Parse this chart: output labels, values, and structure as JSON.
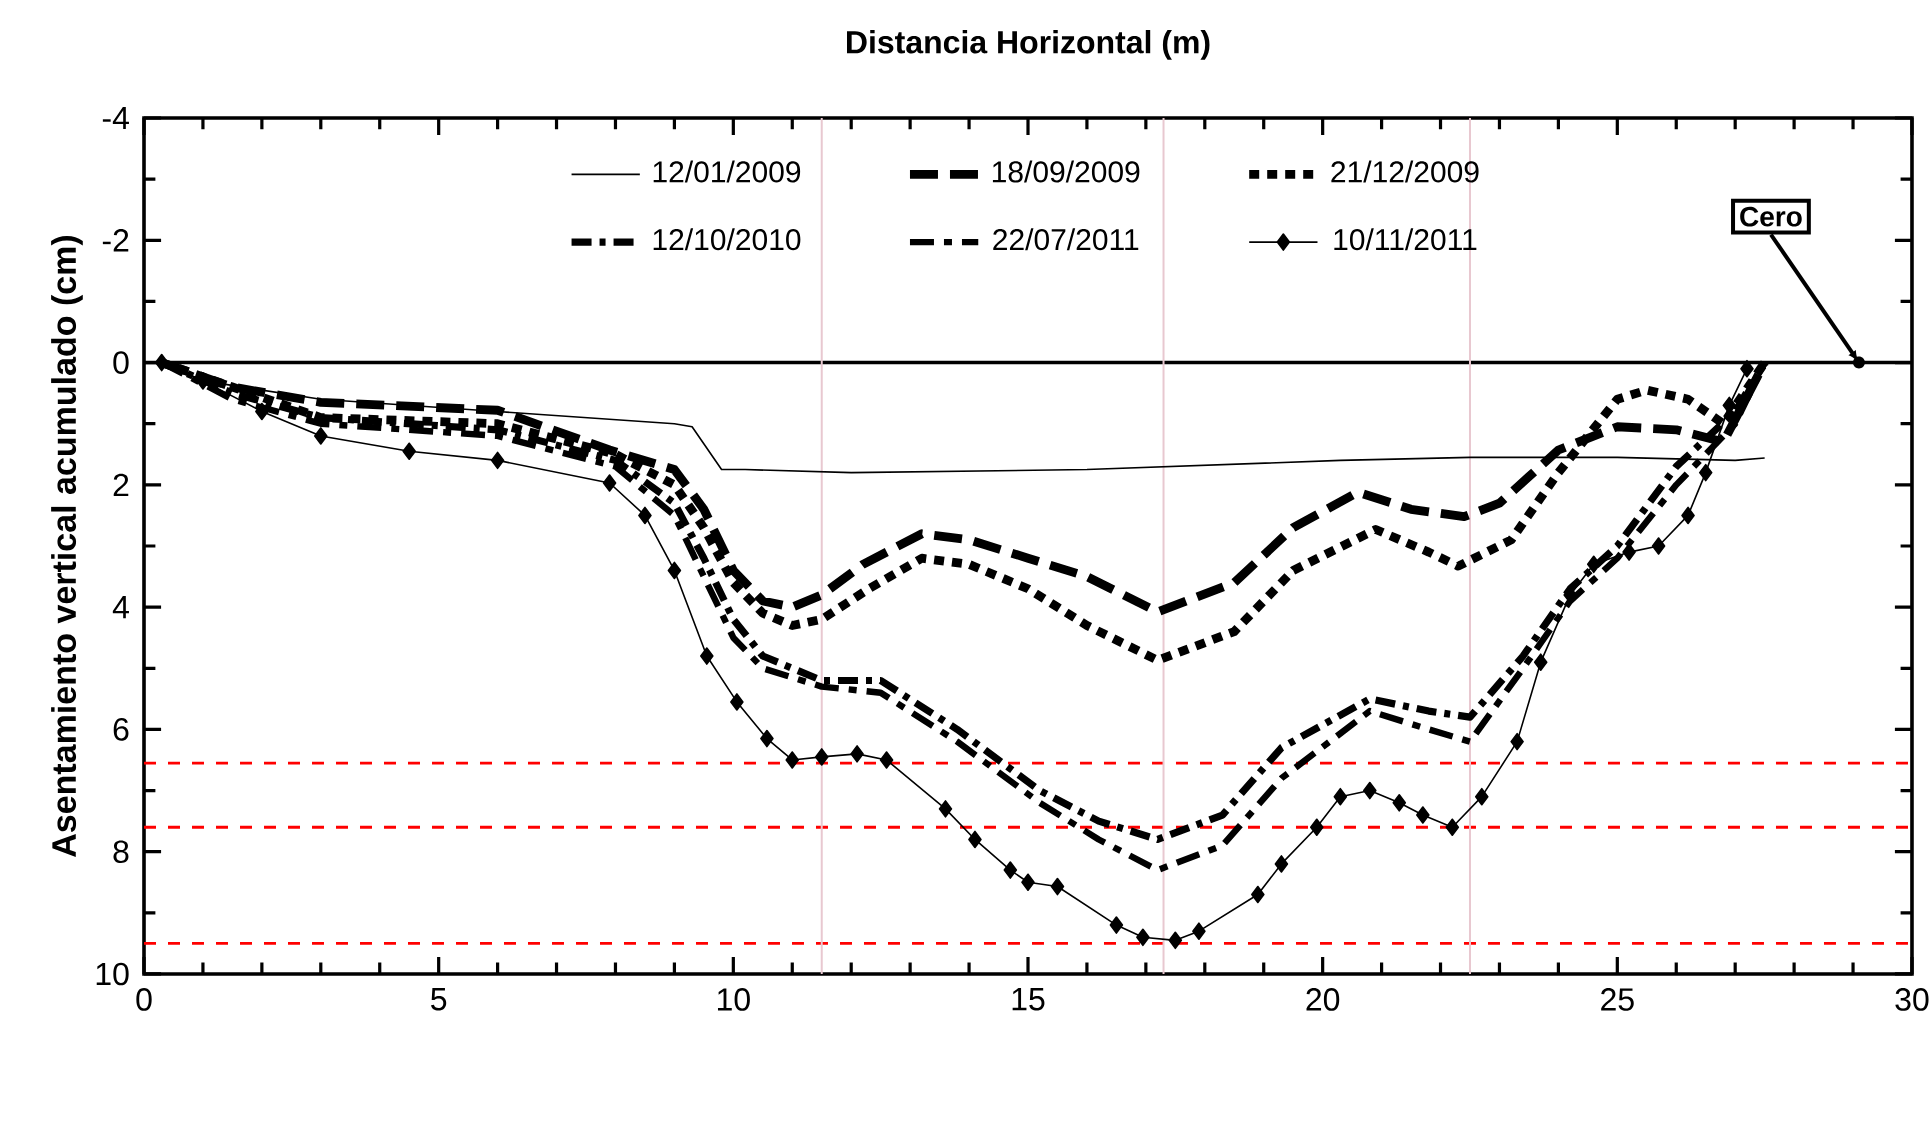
{
  "chart_data": {
    "type": "line",
    "xlabel": "Distancia Horizontal (m)",
    "ylabel": "Asentamiento vertical acumulado (cm)",
    "xlim": [
      0,
      30
    ],
    "xticks": [
      0,
      5,
      10,
      15,
      20,
      25,
      30
    ],
    "ylim": [
      10,
      -4
    ],
    "yticks": [
      -4,
      -2,
      0,
      2,
      4,
      6,
      8,
      10
    ],
    "legend": "top",
    "grid": false,
    "series": [
      {
        "name": "12/01/2009",
        "color": "#000000",
        "line_style": "solid",
        "marker": "none",
        "x": [
          0.3,
          1,
          3,
          6,
          9,
          9.3,
          9.8,
          10.2,
          12,
          16,
          20.3,
          22.5,
          25,
          27,
          27.5
        ],
        "values": [
          0,
          0.3,
          0.6,
          0.8,
          1.0,
          1.05,
          1.75,
          1.75,
          1.8,
          1.75,
          1.6,
          1.55,
          1.55,
          1.6,
          1.56
        ]
      },
      {
        "name": "18/09/2009",
        "color": "#000000",
        "line_style": "dashed",
        "marker": "none",
        "x": [
          0.3,
          1.5,
          3,
          6,
          7.9,
          9,
          9.5,
          10,
          10.5,
          11,
          11.5,
          12.2,
          13.2,
          14,
          15,
          16,
          17.2,
          18.5,
          19.5,
          20.6,
          21.5,
          22.4,
          23,
          24,
          25,
          26,
          26.8,
          27.5
        ],
        "values": [
          0,
          0.4,
          0.65,
          0.78,
          1.43,
          1.75,
          2.4,
          3.4,
          3.9,
          4.0,
          3.8,
          3.3,
          2.8,
          2.9,
          3.2,
          3.5,
          4.08,
          3.6,
          2.7,
          2.12,
          2.4,
          2.52,
          2.3,
          1.43,
          1.05,
          1.1,
          1.3,
          0
        ]
      },
      {
        "name": "21/12/2009",
        "color": "#000000",
        "line_style": "dotted",
        "marker": "none",
        "x": [
          0.3,
          1.5,
          3,
          6,
          8,
          9,
          9.5,
          10,
          10.5,
          11,
          11.5,
          12.3,
          13.2,
          14,
          15,
          16,
          17.2,
          18.5,
          19.5,
          20.9,
          21.8,
          22.3,
          23.2,
          24,
          25,
          25.5,
          26.2,
          26.8,
          27.5
        ],
        "values": [
          0,
          0.4,
          0.9,
          1.0,
          1.5,
          2.0,
          2.7,
          3.6,
          4.1,
          4.3,
          4.2,
          3.7,
          3.2,
          3.3,
          3.7,
          4.3,
          4.87,
          4.4,
          3.4,
          2.73,
          3.1,
          3.33,
          2.9,
          1.8,
          0.6,
          0.45,
          0.6,
          1.0,
          0
        ]
      },
      {
        "name": "12/10/2010",
        "color": "#000000",
        "line_style": "dashdot",
        "marker": "none",
        "x": [
          0.3,
          1.5,
          3,
          6,
          8,
          9,
          9.5,
          10,
          10.5,
          11.5,
          12.5,
          13.8,
          15.2,
          16.2,
          17.2,
          18.3,
          19.3,
          20.8,
          21.8,
          22.5,
          23.4,
          24.2,
          25,
          26,
          27,
          27.5
        ],
        "values": [
          0,
          0.5,
          0.9,
          1.1,
          1.6,
          2.3,
          3.2,
          4.2,
          4.8,
          5.2,
          5.2,
          6.0,
          7.0,
          7.5,
          7.8,
          7.4,
          6.3,
          5.5,
          5.7,
          5.8,
          4.8,
          3.7,
          3.0,
          1.7,
          0.8,
          0
        ]
      },
      {
        "name": "22/07/2011",
        "color": "#000000",
        "line_style": "dashdotdot",
        "marker": "none",
        "x": [
          0.3,
          1.5,
          3,
          6,
          8,
          9,
          9.5,
          10,
          10.5,
          11.5,
          12.5,
          13.8,
          15.2,
          16.2,
          17.2,
          18.3,
          19.3,
          20.8,
          21.8,
          22.5,
          23.4,
          24.2,
          25,
          26,
          27,
          27.5
        ],
        "values": [
          0,
          0.6,
          1.0,
          1.2,
          1.7,
          2.5,
          3.5,
          4.5,
          5.0,
          5.3,
          5.4,
          6.2,
          7.2,
          7.8,
          8.3,
          7.9,
          6.8,
          5.7,
          6.0,
          6.2,
          5.0,
          3.9,
          3.2,
          2.0,
          1.0,
          0
        ]
      },
      {
        "name": "10/11/2011",
        "color": "#000000",
        "line_style": "solid",
        "marker": "diamond",
        "x": [
          0.3,
          1,
          2,
          3,
          4.5,
          6,
          7.9,
          8.5,
          9.0,
          9.55,
          10.06,
          10.57,
          11.0,
          11.5,
          12.1,
          12.6,
          13.6,
          14.1,
          14.7,
          15.0,
          15.5,
          16.5,
          16.95,
          17.5,
          17.9,
          18.9,
          19.3,
          19.9,
          20.3,
          20.8,
          21.3,
          21.7,
          22.2,
          22.7,
          23.3,
          23.7,
          24.2,
          24.6,
          25.2,
          25.7,
          26.2,
          26.5,
          26.9,
          27.2
        ],
        "values": [
          0,
          0.3,
          0.8,
          1.2,
          1.45,
          1.6,
          1.97,
          2.5,
          3.4,
          4.8,
          5.55,
          6.15,
          6.5,
          6.45,
          6.4,
          6.5,
          7.3,
          7.8,
          8.3,
          8.5,
          8.57,
          9.2,
          9.4,
          9.45,
          9.3,
          8.7,
          8.2,
          7.6,
          7.1,
          7.0,
          7.2,
          7.4,
          7.6,
          7.1,
          6.2,
          4.9,
          3.8,
          3.3,
          3.1,
          3.0,
          2.5,
          1.8,
          0.7,
          0.1
        ]
      }
    ],
    "ref_lines": [
      {
        "axis": "y",
        "value": 0,
        "color": "#000000",
        "line_style": "solid"
      },
      {
        "axis": "y",
        "value": 6.55,
        "color": "#ff0000",
        "line_style": "dashed"
      },
      {
        "axis": "y",
        "value": 7.6,
        "color": "#ff0000",
        "line_style": "dashed"
      },
      {
        "axis": "y",
        "value": 9.5,
        "color": "#ff0000",
        "line_style": "dashed"
      },
      {
        "axis": "x",
        "value": 11.5,
        "color": "#e8c8d0",
        "line_style": "solid"
      },
      {
        "axis": "x",
        "value": 17.3,
        "color": "#e8c8d0",
        "line_style": "solid"
      },
      {
        "axis": "x",
        "value": 22.5,
        "color": "#e8c8d0",
        "line_style": "solid"
      }
    ],
    "annotations": [
      {
        "text": "Cero",
        "x": 29.1,
        "y": 0
      }
    ]
  }
}
